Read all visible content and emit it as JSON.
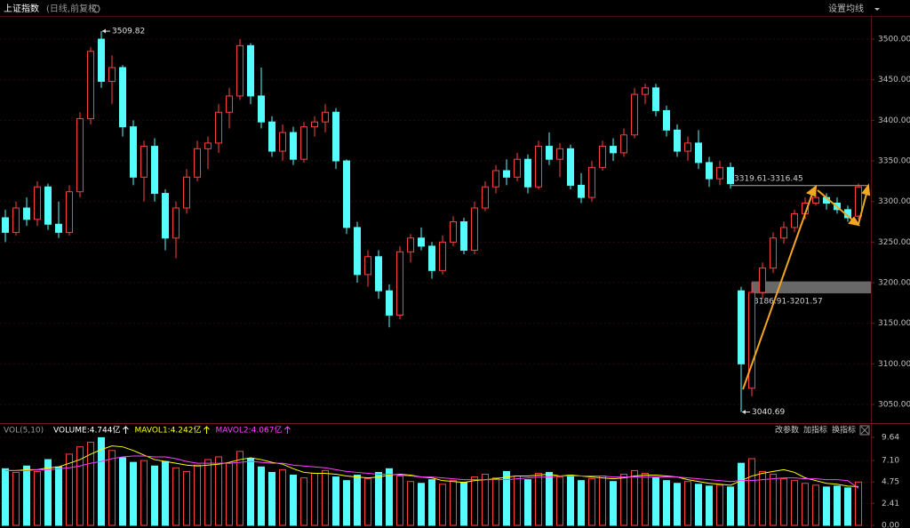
{
  "header": {
    "title": "上证指数",
    "subtitle": "(日线,前复权)",
    "settings": "设置均线"
  },
  "chart_data": [
    {
      "type": "candlestick",
      "ylim": [
        3033.6,
        3528.5
      ],
      "yticks": [
        {
          "value": 3050,
          "label": "3050.00"
        },
        {
          "value": 3100,
          "label": "3100.00"
        },
        {
          "value": 3150,
          "label": "3150.00"
        },
        {
          "value": 3200,
          "label": "3200.00"
        },
        {
          "value": 3250,
          "label": "3250.00"
        },
        {
          "value": 3300,
          "label": "3300.00"
        },
        {
          "value": 3350,
          "label": "3350.00"
        },
        {
          "value": 3400,
          "label": "3400.00"
        },
        {
          "value": 3450,
          "label": "3450.00"
        },
        {
          "value": 3500,
          "label": "3500.00"
        }
      ],
      "up_color": "#ff4040",
      "down_color": "#54fcfc",
      "ohlc": [
        [
          3280,
          3290,
          3250,
          3262
        ],
        [
          3262,
          3300,
          3258,
          3292
        ],
        [
          3292,
          3305,
          3270,
          3278
        ],
        [
          3278,
          3325,
          3270,
          3318
        ],
        [
          3318,
          3322,
          3265,
          3272
        ],
        [
          3272,
          3300,
          3255,
          3262
        ],
        [
          3262,
          3320,
          3258,
          3312
        ],
        [
          3312,
          3410,
          3305,
          3402
        ],
        [
          3402,
          3490,
          3395,
          3485
        ],
        [
          3500,
          3509.82,
          3440,
          3448
        ],
        [
          3448,
          3480,
          3420,
          3465
        ],
        [
          3465,
          3468,
          3380,
          3392
        ],
        [
          3392,
          3400,
          3320,
          3330
        ],
        [
          3330,
          3375,
          3300,
          3368
        ],
        [
          3368,
          3378,
          3300,
          3310
        ],
        [
          3310,
          3315,
          3240,
          3255
        ],
        [
          3255,
          3300,
          3230,
          3292
        ],
        [
          3292,
          3340,
          3285,
          3330
        ],
        [
          3330,
          3375,
          3325,
          3365
        ],
        [
          3365,
          3380,
          3340,
          3372
        ],
        [
          3372,
          3420,
          3360,
          3410
        ],
        [
          3410,
          3440,
          3390,
          3430
        ],
        [
          3430,
          3500,
          3425,
          3492
        ],
        [
          3492,
          3495,
          3420,
          3430
        ],
        [
          3430,
          3465,
          3390,
          3398
        ],
        [
          3398,
          3405,
          3355,
          3362
        ],
        [
          3362,
          3395,
          3350,
          3385
        ],
        [
          3385,
          3392,
          3345,
          3352
        ],
        [
          3352,
          3398,
          3348,
          3392
        ],
        [
          3392,
          3405,
          3380,
          3398
        ],
        [
          3398,
          3420,
          3385,
          3410
        ],
        [
          3410,
          3415,
          3340,
          3350
        ],
        [
          3350,
          3352,
          3260,
          3268
        ],
        [
          3268,
          3275,
          3200,
          3210
        ],
        [
          3210,
          3240,
          3195,
          3232
        ],
        [
          3232,
          3240,
          3180,
          3190
        ],
        [
          3190,
          3198,
          3145,
          3160
        ],
        [
          3160,
          3245,
          3155,
          3238
        ],
        [
          3238,
          3260,
          3225,
          3255
        ],
        [
          3255,
          3268,
          3240,
          3245
        ],
        [
          3245,
          3250,
          3205,
          3215
        ],
        [
          3215,
          3258,
          3210,
          3250
        ],
        [
          3250,
          3282,
          3245,
          3275
        ],
        [
          3275,
          3280,
          3235,
          3240
        ],
        [
          3240,
          3300,
          3235,
          3292
        ],
        [
          3292,
          3325,
          3288,
          3318
        ],
        [
          3318,
          3345,
          3310,
          3338
        ],
        [
          3338,
          3352,
          3320,
          3330
        ],
        [
          3330,
          3360,
          3325,
          3352
        ],
        [
          3352,
          3358,
          3310,
          3318
        ],
        [
          3318,
          3375,
          3315,
          3368
        ],
        [
          3368,
          3385,
          3345,
          3352
        ],
        [
          3352,
          3372,
          3330,
          3365
        ],
        [
          3365,
          3370,
          3315,
          3320
        ],
        [
          3320,
          3335,
          3298,
          3305
        ],
        [
          3305,
          3350,
          3300,
          3342
        ],
        [
          3342,
          3375,
          3338,
          3368
        ],
        [
          3368,
          3378,
          3350,
          3360
        ],
        [
          3360,
          3390,
          3355,
          3382
        ],
        [
          3382,
          3440,
          3378,
          3432
        ],
        [
          3432,
          3445,
          3420,
          3440
        ],
        [
          3440,
          3445,
          3405,
          3412
        ],
        [
          3412,
          3418,
          3380,
          3388
        ],
        [
          3388,
          3395,
          3355,
          3362
        ],
        [
          3362,
          3380,
          3350,
          3372
        ],
        [
          3372,
          3388,
          3340,
          3348
        ],
        [
          3348,
          3355,
          3318,
          3328
        ],
        [
          3328,
          3350,
          3320,
          3342
        ],
        [
          3342,
          3348,
          3316,
          3322
        ],
        [
          3190,
          3195,
          3040.69,
          3100
        ],
        [
          3070,
          3200,
          3060,
          3188
        ],
        [
          3188,
          3225,
          3180,
          3218
        ],
        [
          3218,
          3262,
          3212,
          3255
        ],
        [
          3255,
          3275,
          3248,
          3268
        ],
        [
          3268,
          3290,
          3262,
          3285
        ],
        [
          3285,
          3305,
          3278,
          3298
        ],
        [
          3298,
          3318,
          3295,
          3305
        ],
        [
          3305,
          3310,
          3290,
          3298
        ],
        [
          3298,
          3305,
          3285,
          3290
        ],
        [
          3290,
          3295,
          3275,
          3280
        ],
        [
          3282,
          3322,
          3278,
          3318
        ]
      ],
      "annotations": [
        {
          "text": "3509.82",
          "index": 9,
          "value": 3509.82
        },
        {
          "text": "3040.69",
          "index": 69,
          "value": 3040.69
        }
      ],
      "levels": [
        {
          "text": "3319.61-3316.45",
          "from": 68,
          "value": 3319.61
        },
        {
          "text": "3186.91-3201.57",
          "from": 70,
          "low": 3186.91,
          "high": 3201.57
        }
      ]
    },
    {
      "type": "volume",
      "title": "VOL(5,10)",
      "readouts": [
        {
          "text": "VOLUME:4.744亿",
          "color": "#ffffff"
        },
        {
          "text": "MAVOL1:4.242亿",
          "color": "#ffff00"
        },
        {
          "text": "MAVOL2:4.067亿",
          "color": "#ff40ff"
        }
      ],
      "buttons": [
        "改参数",
        "加指标",
        "换指标"
      ],
      "ylim": [
        0,
        9.64
      ],
      "yticks": [
        {
          "value": 0,
          "label": "0.00"
        },
        2.41,
        4.75,
        {
          "value": 7.1,
          "label": "7.10"
        },
        9.64
      ],
      "values": [
        6.2,
        5.8,
        6.5,
        5.9,
        7.2,
        6.4,
        7.8,
        8.6,
        9.1,
        9.6,
        8.2,
        7.4,
        6.9,
        7.1,
        6.5,
        7.0,
        6.3,
        5.9,
        6.6,
        7.2,
        7.5,
        6.8,
        8.1,
        7.3,
        6.4,
        5.8,
        6.1,
        5.5,
        5.2,
        5.7,
        6.0,
        5.3,
        4.9,
        5.5,
        5.1,
        5.8,
        6.2,
        5.4,
        4.8,
        4.6,
        5.0,
        4.5,
        4.9,
        4.7,
        5.3,
        5.6,
        5.2,
        5.9,
        5.4,
        5.0,
        5.7,
        5.8,
        5.3,
        5.5,
        4.9,
        5.1,
        5.4,
        4.8,
        5.6,
        6.0,
        5.7,
        5.2,
        4.9,
        4.6,
        4.8,
        4.5,
        4.3,
        4.4,
        4.2,
        6.8,
        7.3,
        5.9,
        5.6,
        5.1,
        4.9,
        4.6,
        4.4,
        4.2,
        4.3,
        4.1,
        4.744
      ],
      "series": [
        {
          "name": "MAVOL1",
          "color": "#ffff00",
          "values": [
            6.0,
            6.0,
            6.1,
            6.1,
            6.3,
            6.4,
            6.8,
            7.2,
            7.8,
            8.3,
            8.7,
            8.6,
            8.2,
            7.7,
            7.2,
            7.0,
            6.8,
            6.6,
            6.5,
            6.6,
            6.7,
            6.9,
            7.2,
            7.4,
            7.2,
            6.9,
            6.7,
            6.2,
            5.8,
            5.7,
            5.7,
            5.6,
            5.4,
            5.3,
            5.2,
            5.3,
            5.5,
            5.6,
            5.5,
            5.3,
            5.2,
            4.9,
            4.8,
            4.7,
            4.9,
            5.0,
            5.1,
            5.3,
            5.4,
            5.4,
            5.5,
            5.6,
            5.4,
            5.5,
            5.4,
            5.3,
            5.2,
            5.1,
            5.2,
            5.4,
            5.5,
            5.5,
            5.4,
            5.3,
            5.0,
            4.8,
            4.6,
            4.5,
            4.4,
            4.9,
            5.4,
            5.7,
            5.9,
            6.1,
            5.8,
            5.2,
            4.9,
            4.6,
            4.5,
            4.3,
            4.242
          ]
        },
        {
          "name": "MAVOL2",
          "color": "#ff40ff",
          "values": [
            6.0,
            6.0,
            6.0,
            6.1,
            6.1,
            6.2,
            6.3,
            6.5,
            6.8,
            7.0,
            7.3,
            7.5,
            7.6,
            7.6,
            7.5,
            7.5,
            7.3,
            7.0,
            6.8,
            6.8,
            6.8,
            6.8,
            6.9,
            7.0,
            6.9,
            6.8,
            6.8,
            6.6,
            6.5,
            6.4,
            6.3,
            6.1,
            5.9,
            5.8,
            5.7,
            5.6,
            5.6,
            5.5,
            5.4,
            5.3,
            5.3,
            5.2,
            5.1,
            5.0,
            5.0,
            5.0,
            5.0,
            5.0,
            5.1,
            5.2,
            5.3,
            5.3,
            5.4,
            5.4,
            5.4,
            5.4,
            5.4,
            5.3,
            5.3,
            5.3,
            5.3,
            5.3,
            5.3,
            5.3,
            5.2,
            5.1,
            5.0,
            4.9,
            4.8,
            4.9,
            4.9,
            5.0,
            5.1,
            5.2,
            5.2,
            5.1,
            5.1,
            5.0,
            5.0,
            4.9,
            4.067
          ]
        }
      ]
    }
  ]
}
